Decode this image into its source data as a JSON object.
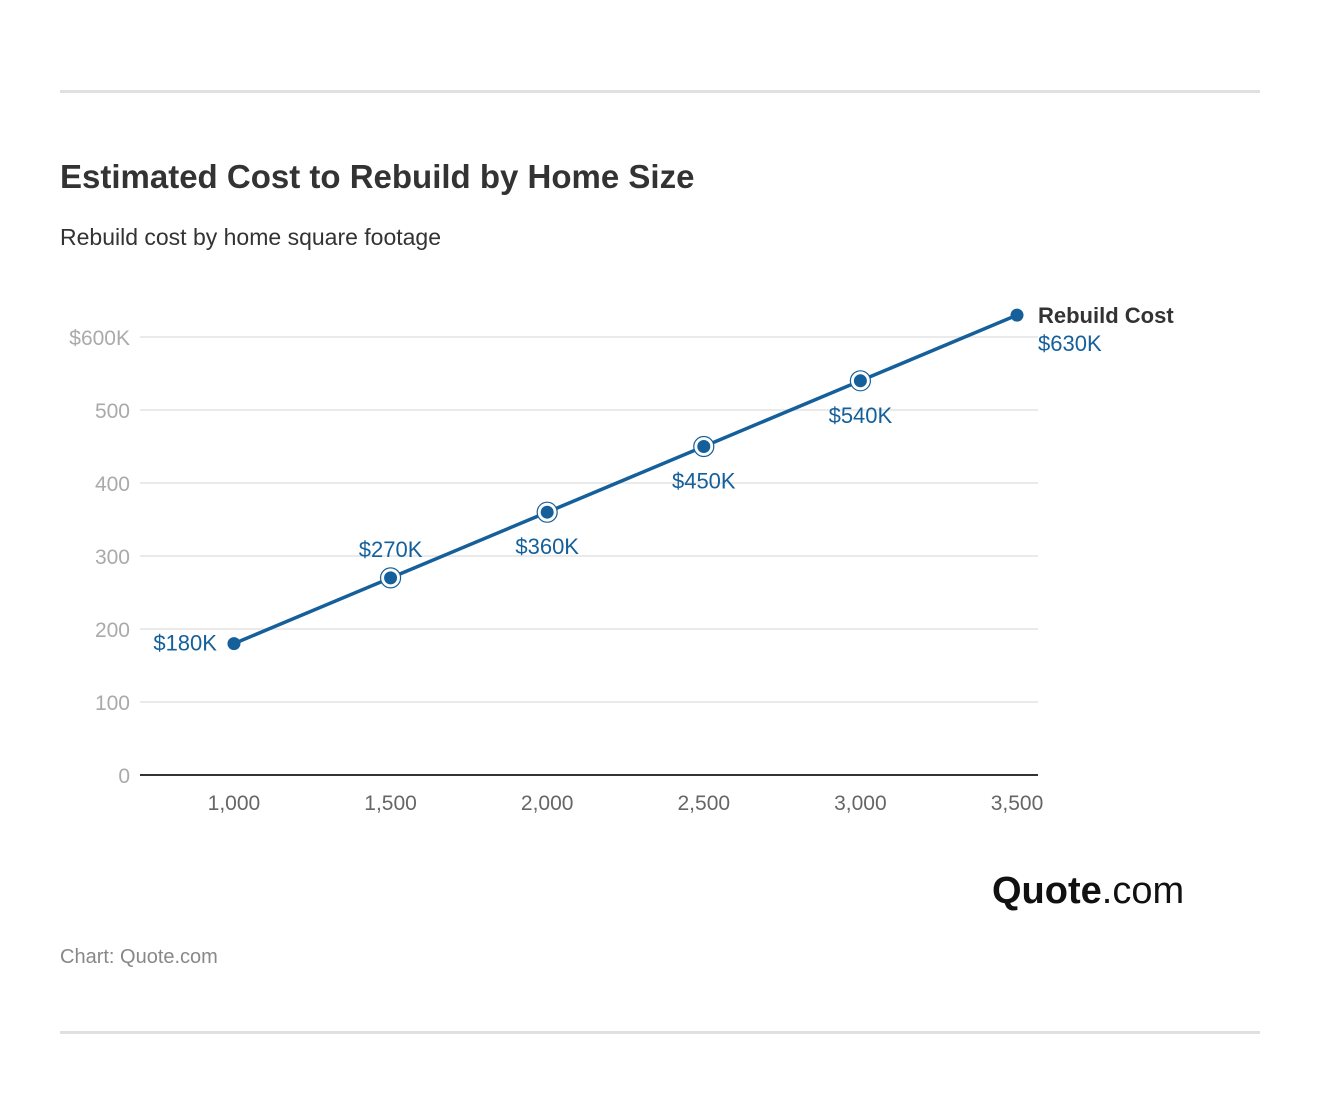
{
  "header": {
    "title": "Estimated Cost to Rebuild by Home Size",
    "subtitle": "Rebuild cost by home square footage"
  },
  "footer": {
    "logo_bold": "Quote",
    "logo_light": ".com",
    "source": "Chart: Quote.com"
  },
  "colors": {
    "series": "#15609b",
    "grid": "#e3e3e3",
    "axis": "#333333",
    "tick_y": "#aaaaaa",
    "tick_x": "#666666"
  },
  "chart_data": {
    "type": "line",
    "x": [
      1000,
      1500,
      2000,
      2500,
      3000,
      3500
    ],
    "x_tick_labels": [
      "1,000",
      "1,500",
      "2,000",
      "2,500",
      "3,000",
      "3,500"
    ],
    "series": [
      {
        "name": "Rebuild Cost",
        "values": [
          180,
          270,
          360,
          450,
          540,
          630
        ],
        "data_labels": [
          "$180K",
          "$270K",
          "$360K",
          "$450K",
          "$540K",
          "$630K"
        ]
      }
    ],
    "y_ticks": [
      0,
      100,
      200,
      300,
      400,
      500,
      600
    ],
    "y_tick_labels": [
      "0",
      "100",
      "200",
      "300",
      "400",
      "500",
      "$600K"
    ],
    "xlim": [
      700,
      3570
    ],
    "ylim": [
      0,
      600
    ],
    "grid": true,
    "legend": "end-of-line label"
  }
}
